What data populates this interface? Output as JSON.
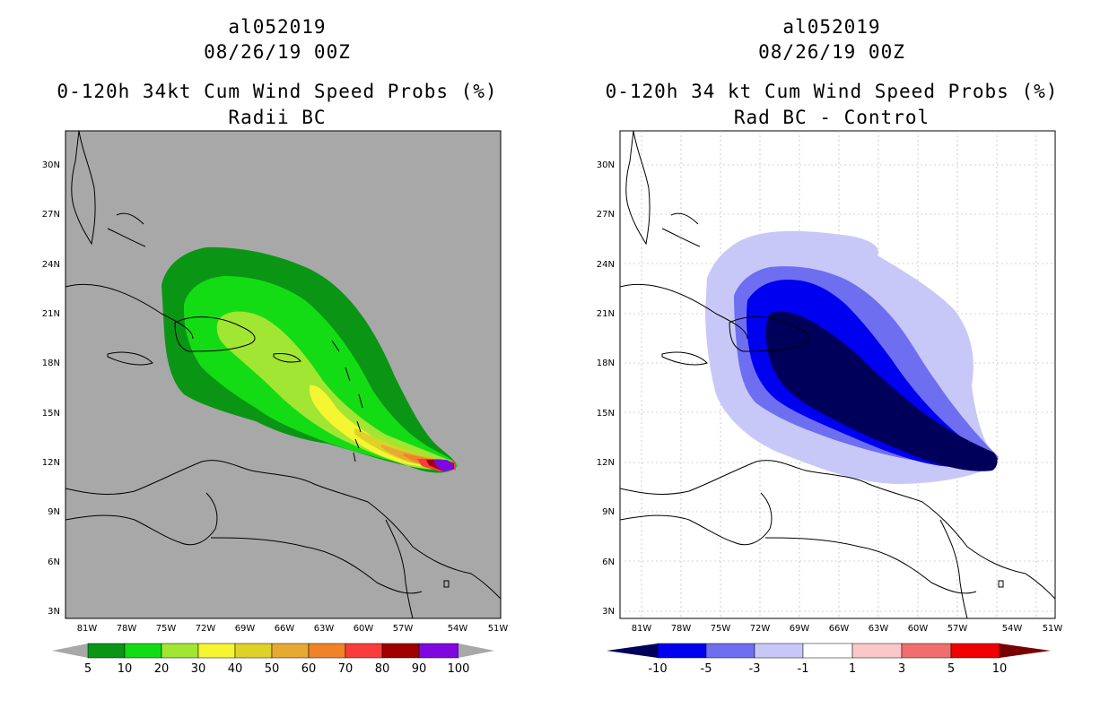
{
  "left": {
    "title": "al052019",
    "datetime": "08/26/19 00Z",
    "product": "0-120h 34kt Cum Wind Speed Probs (%)",
    "subtitle": "Radii BC",
    "colorbar": {
      "labels": [
        "5",
        "10",
        "20",
        "30",
        "40",
        "50",
        "60",
        "70",
        "80",
        "90",
        "100"
      ],
      "colors": [
        "#a8a8a8",
        "#0a9614",
        "#14dc14",
        "#a0e632",
        "#f5f532",
        "#dcd228",
        "#e6aa32",
        "#f08228",
        "#fa3c3c",
        "#a00000",
        "#7e08de",
        "#a8a8a8"
      ]
    }
  },
  "right": {
    "title": "al052019",
    "datetime": "08/26/19 00Z",
    "product": "0-120h 34 kt Cum Wind Speed Probs (%)",
    "subtitle": "Rad BC - Control",
    "colorbar": {
      "labels": [
        "-10",
        "-5",
        "-3",
        "-1",
        "1",
        "3",
        "5",
        "10"
      ],
      "colors": [
        "#00005a",
        "#0000f0",
        "#6e6ef0",
        "#c8c8f8",
        "#ffffff",
        "#fac8c8",
        "#f06e6e",
        "#f00000",
        "#780000"
      ]
    }
  },
  "axes": {
    "lat_labels": [
      "30N",
      "27N",
      "24N",
      "21N",
      "18N",
      "15N",
      "12N",
      "9N",
      "6N",
      "3N"
    ],
    "lon_labels": [
      "81W",
      "78W",
      "75W",
      "72W",
      "69W",
      "66W",
      "63W",
      "60W",
      "57W",
      "54W",
      "51W"
    ]
  }
}
